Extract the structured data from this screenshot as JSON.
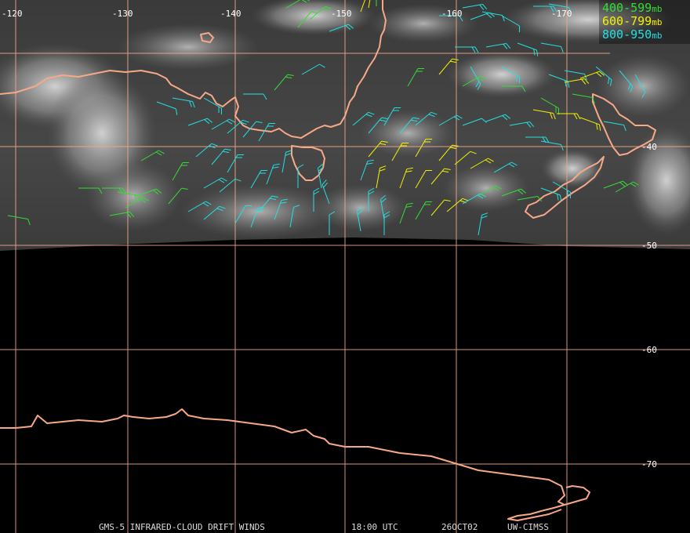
{
  "colors": {
    "grid": "#f2a787",
    "coast": "#f7a987",
    "legend_400": "#33dd33",
    "legend_600": "#f2f200",
    "legend_800": "#22e0e0",
    "caption": "#dddddd",
    "label": "#ffffff"
  },
  "longitude_labels": [
    "-120",
    "-130",
    "-140",
    "-150",
    "-160",
    "-170"
  ],
  "latitude_labels": [
    "-40",
    "-50",
    "-60",
    "-70"
  ],
  "legend": [
    {
      "label": "400-599",
      "unit": "mb",
      "color": "#33dd33"
    },
    {
      "label": "600-799",
      "unit": "mb",
      "color": "#f2f200"
    },
    {
      "label": "800-950",
      "unit": "mb",
      "color": "#22e0e0"
    }
  ],
  "caption": {
    "product": "GMS-5 INFRARED-CLOUD DRIFT WINDS",
    "time": "18:00 UTC",
    "date": "26OCT02",
    "source": "UW-CIMSS"
  }
}
